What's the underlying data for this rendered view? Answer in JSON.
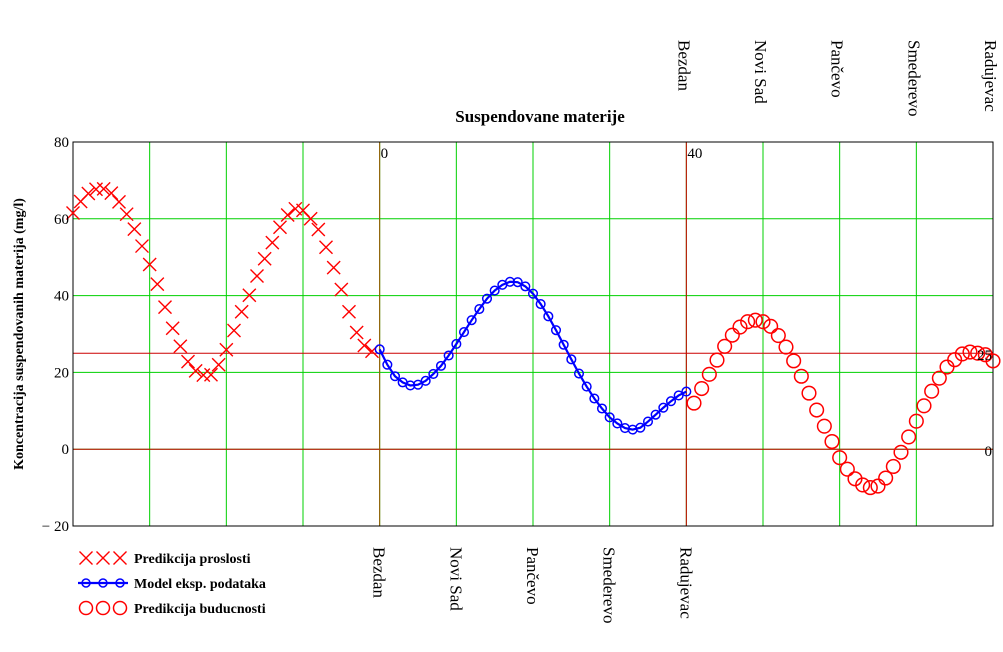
{
  "chart_data": {
    "type": "line",
    "title": "Suspendovane materije",
    "ylabel": "Koncentracija suspendovanih materija (mg/l)",
    "xlabel": "",
    "ylim": [
      -20,
      80
    ],
    "y_ticks": [
      {
        "value": 80,
        "label": "80"
      },
      {
        "value": 60,
        "label": "60"
      },
      {
        "value": 40,
        "label": "40"
      },
      {
        "value": 20,
        "label": "20"
      },
      {
        "value": 0,
        "label": "0"
      },
      {
        "value": -20,
        "label": "− 20"
      }
    ],
    "grid": true,
    "legend_position": "bottom-left",
    "bottom_station_labels": [
      "Bezdan",
      "Novi Sad",
      "Pančevo",
      "Smederevo",
      "Radujevac"
    ],
    "top_station_labels": [
      "Bezdan",
      "Novi Sad",
      "Pančevo",
      "Smederevo",
      "Radujevac"
    ],
    "inner_annotations": [
      {
        "text": "0",
        "x": 0,
        "y": 80
      },
      {
        "text": "40",
        "x": 40,
        "y": 80
      },
      {
        "text": "25",
        "x": 80,
        "y": 25
      },
      {
        "text": "0",
        "x": 80,
        "y": 0
      }
    ],
    "reference_lines": {
      "vertical_x": [
        0,
        40
      ],
      "horizontal_y": [
        25,
        0
      ]
    },
    "series": [
      {
        "name": "Predikcija proslosti",
        "marker": "x",
        "color": "#ff0000",
        "x": [
          -40,
          -39,
          -38,
          -37,
          -36,
          -35,
          -34,
          -33,
          -32,
          -31,
          -30,
          -29,
          -28,
          -27,
          -26,
          -25,
          -24,
          -23,
          -22,
          -21,
          -20,
          -19,
          -18,
          -17,
          -16,
          -15,
          -14,
          -13,
          -12,
          -11,
          -10,
          -9,
          -8,
          -7,
          -6,
          -5,
          -4,
          -3,
          -2,
          -1
        ],
        "y": [
          61.5,
          64.5,
          66.6,
          67.7,
          67.8,
          66.7,
          64.4,
          61.2,
          57.3,
          52.9,
          48.1,
          43.0,
          37.0,
          31.5,
          26.8,
          22.8,
          20.4,
          19.3,
          19.4,
          22.0,
          25.9,
          30.9,
          35.8,
          40.1,
          45.1,
          49.6,
          53.8,
          57.8,
          61.0,
          62.6,
          62.2,
          60.0,
          57.2,
          52.6,
          47.3,
          41.6,
          35.8,
          30.4,
          27.0,
          25.5
        ]
      },
      {
        "name": "Model eksp. podataka",
        "marker": "o",
        "color": "#0000ff",
        "x": [
          0,
          1,
          2,
          3,
          4,
          5,
          6,
          7,
          8,
          9,
          10,
          11,
          12,
          13,
          14,
          15,
          16,
          17,
          18,
          19,
          20,
          21,
          22,
          23,
          24,
          25,
          26,
          27,
          28,
          29,
          30,
          31,
          32,
          33,
          34,
          35,
          36,
          37,
          38,
          39,
          40
        ],
        "y": [
          26.0,
          22.0,
          19.0,
          17.4,
          16.6,
          16.8,
          17.8,
          19.6,
          21.7,
          24.4,
          27.4,
          30.5,
          33.6,
          36.5,
          39.2,
          41.3,
          42.8,
          43.6,
          43.5,
          42.4,
          40.5,
          37.8,
          34.6,
          31.0,
          27.2,
          23.4,
          19.7,
          16.3,
          13.2,
          10.6,
          8.3,
          6.7,
          5.5,
          5.1,
          5.6,
          7.2,
          9.0,
          10.8,
          12.5,
          14.0,
          15.0
        ]
      },
      {
        "name": "Predikcija buducnosti",
        "marker": "circle",
        "color": "#ff0000",
        "x": [
          41,
          42,
          43,
          44,
          45,
          46,
          47,
          48,
          49,
          50,
          51,
          52,
          53,
          54,
          55,
          56,
          57,
          58,
          59,
          60,
          61,
          62,
          63,
          64,
          65,
          66,
          67,
          68,
          69,
          70,
          71,
          72,
          73,
          74,
          75,
          76,
          77,
          78,
          79,
          80
        ],
        "y": [
          12.0,
          15.8,
          19.5,
          23.2,
          26.8,
          29.7,
          31.8,
          33.2,
          33.6,
          33.2,
          32.0,
          29.6,
          26.6,
          23.0,
          19.0,
          14.6,
          10.2,
          6.0,
          2.0,
          -2.2,
          -5.2,
          -7.7,
          -9.3,
          -10.0,
          -9.6,
          -7.5,
          -4.5,
          -0.8,
          3.2,
          7.3,
          11.3,
          15.1,
          18.5,
          21.4,
          23.3,
          24.8,
          25.3,
          25.0,
          24.6,
          23.0
        ]
      }
    ]
  }
}
